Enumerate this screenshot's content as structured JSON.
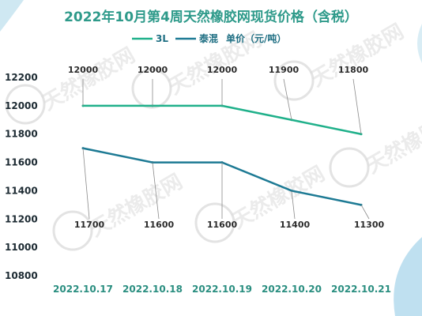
{
  "chart_data": {
    "type": "line",
    "title": "2022年10月第4周天然橡胶网现货价格（含税）",
    "legend_suffix": "单价（元/吨）",
    "categories": [
      "2022.10.17",
      "2022.10.18",
      "2022.10.19",
      "2022.10.20",
      "2022.10.21"
    ],
    "series": [
      {
        "name": "3L",
        "color": "#1fb08a",
        "values": [
          12000,
          12000,
          12000,
          11900,
          11800
        ]
      },
      {
        "name": "泰混",
        "color": "#1d7a94",
        "values": [
          11700,
          11600,
          11600,
          11400,
          11300
        ]
      }
    ],
    "ylim": [
      10800,
      12200
    ],
    "yticks": [
      10800,
      11000,
      11200,
      11400,
      11600,
      11800,
      12000,
      12200
    ],
    "grid": false,
    "legend_position": "top-center",
    "watermark": "天然橡胶网"
  }
}
